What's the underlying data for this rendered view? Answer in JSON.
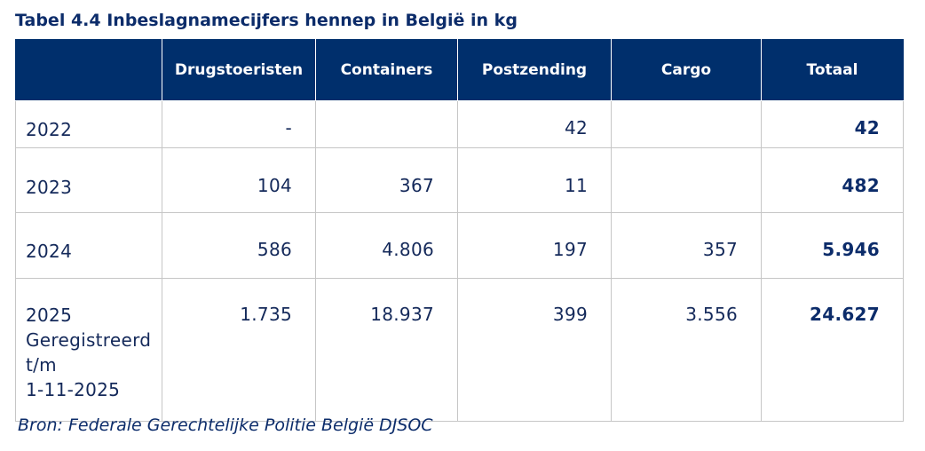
{
  "title": "Tabel 4.4 Inbeslagnamecijfers hennep in België in kg",
  "table": {
    "headers": [
      "",
      "Drugstoeristen",
      "Containers",
      "Postzending",
      "Cargo",
      "Totaal"
    ],
    "rows": [
      {
        "year_lines": [
          "2022"
        ],
        "cells": [
          "-",
          "",
          "42",
          "",
          "42"
        ]
      },
      {
        "year_lines": [
          "2023"
        ],
        "cells": [
          "104",
          "367",
          "11",
          "",
          "482"
        ]
      },
      {
        "year_lines": [
          "2024"
        ],
        "cells": [
          "586",
          "4.806",
          "197",
          "357",
          "5.946"
        ]
      },
      {
        "year_lines": [
          "2025",
          "Geregistreerd",
          "t/m",
          "1-11-2025"
        ],
        "cells": [
          "1.735",
          "18.937",
          "399",
          "3.556",
          "24.627"
        ]
      }
    ]
  },
  "source": "Bron: Federale Gerechtelijke Politie België DJSOC",
  "colors": {
    "header_background": "#002f6c",
    "header_text": "#ffffff",
    "body_text": "#14295a",
    "grid": "#c6c6c6"
  }
}
